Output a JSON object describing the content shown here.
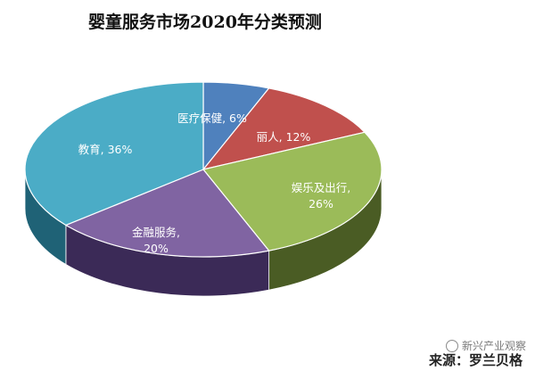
{
  "chart_data": {
    "type": "pie",
    "title": "婴童服务市场2020年分类预测",
    "slices": [
      {
        "name": "医疗保健",
        "value": 6,
        "label_suffix": ", 6%",
        "color": "#4f81bd",
        "side_color": "#2b4d78"
      },
      {
        "name": "丽人",
        "value": 12,
        "label_suffix": ", 12%",
        "color": "#c0504d",
        "side_color": "#7a2624"
      },
      {
        "name": "娱乐及出行",
        "value": 26,
        "label_suffix": "26%",
        "color": "#9bbb59",
        "side_color": "#4a5c24"
      },
      {
        "name": "金融服务",
        "value": 20,
        "label_suffix": "20%",
        "color": "#8064a2",
        "side_color": "#3b2a57"
      },
      {
        "name": "教育",
        "value": 36,
        "label_suffix": ", 36%",
        "color": "#4bacc6",
        "side_color": "#1f6276"
      }
    ],
    "legend": "none"
  },
  "watermark": {
    "text": "新兴产业观察",
    "icon": "wechat-icon"
  },
  "source": {
    "text": "来源：罗兰贝格"
  }
}
